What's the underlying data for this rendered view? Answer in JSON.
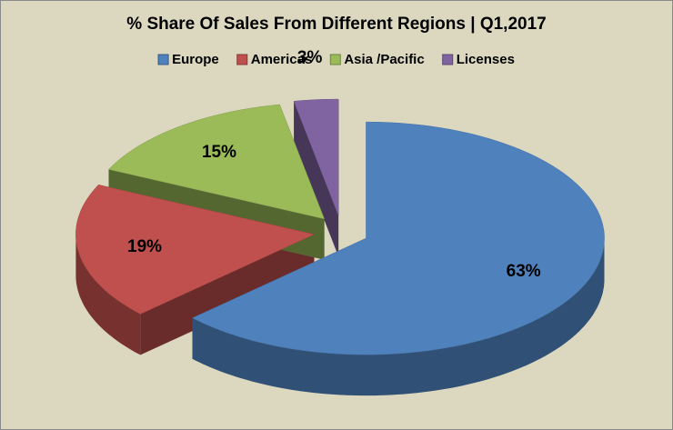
{
  "chart_data": {
    "type": "pie3d",
    "title": "% Share Of Sales From Different Regions | Q1,2017",
    "categories": [
      "Europe",
      "Americas",
      "Asia /Pacific",
      "Licenses"
    ],
    "values": [
      63,
      19,
      15,
      3
    ],
    "value_labels": [
      "63%",
      "19%",
      "15%",
      "3%"
    ],
    "colors": [
      "#4f81bd",
      "#c0504d",
      "#9bbb59",
      "#8064a2"
    ],
    "legend": "top"
  }
}
